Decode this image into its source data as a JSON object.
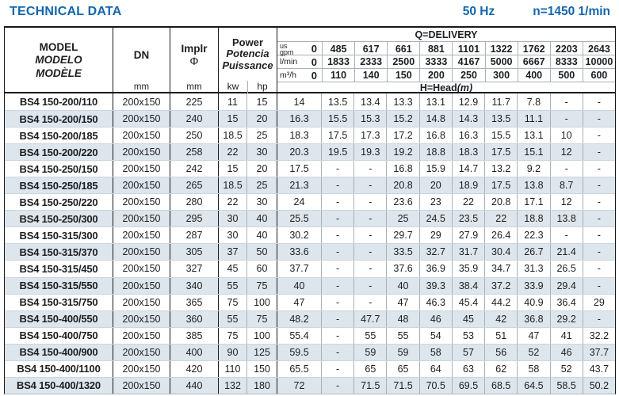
{
  "page": {
    "title": "TECHNICAL DATA",
    "frequency": "50 Hz",
    "speed": "n=1450 1/min"
  },
  "colors": {
    "accent_blue": "#1266ad",
    "row_stripe": "#dde6ed"
  },
  "table": {
    "header": {
      "model": {
        "lines": [
          "MODEL",
          "MODELO",
          "MODÈLE"
        ]
      },
      "dn": {
        "label": "DN",
        "unit": "mm"
      },
      "impeller": {
        "label": "Implr",
        "symbol": "Φ",
        "unit": "mm"
      },
      "power": {
        "lines": [
          "Power",
          "Potencia",
          "Puissance"
        ],
        "units": [
          "kw",
          "hp"
        ]
      },
      "delivery": {
        "title": "Q=DELIVERY",
        "unit_rows": [
          {
            "label_top": "us",
            "label": "gpm",
            "values": [
              "0",
              "485",
              "617",
              "661",
              "881",
              "1101",
              "1322",
              "1762",
              "2203",
              "2643"
            ]
          },
          {
            "label": "l/min",
            "values": [
              "0",
              "1833",
              "2333",
              "2500",
              "3333",
              "4167",
              "5000",
              "6667",
              "8333",
              "10000"
            ]
          },
          {
            "label": "m³/h",
            "values": [
              "0",
              "110",
              "140",
              "150",
              "200",
              "250",
              "300",
              "400",
              "500",
              "600"
            ]
          }
        ],
        "head_label": "H=Head",
        "head_unit": "(m)"
      }
    },
    "rows": [
      {
        "model": "BS4 150-200/110",
        "dn": "200x150",
        "impeller": "225",
        "kw": "11",
        "hp": "15",
        "head": [
          "14",
          "13.5",
          "13.4",
          "13.3",
          "13.1",
          "12.9",
          "11.7",
          "7.8",
          "-",
          "-"
        ]
      },
      {
        "model": "BS4 150-200/150",
        "dn": "200x150",
        "impeller": "240",
        "kw": "15",
        "hp": "20",
        "head": [
          "16.3",
          "15.5",
          "15.3",
          "15.2",
          "14.8",
          "14.3",
          "13.5",
          "11.1",
          "-",
          "-"
        ]
      },
      {
        "model": "BS4 150-200/185",
        "dn": "200x150",
        "impeller": "250",
        "kw": "18.5",
        "hp": "25",
        "head": [
          "18.3",
          "17.5",
          "17.3",
          "17.2",
          "16.8",
          "16.3",
          "15.5",
          "13.1",
          "10",
          "-"
        ]
      },
      {
        "model": "BS4 150-200/220",
        "dn": "200x150",
        "impeller": "258",
        "kw": "22",
        "hp": "30",
        "head": [
          "20.3",
          "19.5",
          "19.3",
          "19.2",
          "18.8",
          "18.3",
          "17.5",
          "15.1",
          "12",
          "-"
        ]
      },
      {
        "model": "BS4 150-250/150",
        "dn": "200x150",
        "impeller": "242",
        "kw": "15",
        "hp": "20",
        "head": [
          "17.5",
          "-",
          "-",
          "16.8",
          "15.9",
          "14.7",
          "13.2",
          "9.2",
          "-",
          "-"
        ]
      },
      {
        "model": "BS4 150-250/185",
        "dn": "200x150",
        "impeller": "265",
        "kw": "18.5",
        "hp": "25",
        "head": [
          "21.3",
          "-",
          "-",
          "20.8",
          "20",
          "18.9",
          "17.5",
          "13.8",
          "8.7",
          "-"
        ]
      },
      {
        "model": "BS4 150-250/220",
        "dn": "200x150",
        "impeller": "280",
        "kw": "22",
        "hp": "30",
        "head": [
          "24",
          "-",
          "-",
          "23.6",
          "23",
          "22",
          "20.8",
          "17.1",
          "12",
          "-"
        ]
      },
      {
        "model": "BS4 150-250/300",
        "dn": "200x150",
        "impeller": "295",
        "kw": "30",
        "hp": "40",
        "head": [
          "25.5",
          "-",
          "-",
          "25",
          "24.5",
          "23.5",
          "22",
          "18.8",
          "13.8",
          "-"
        ]
      },
      {
        "model": "BS4 150-315/300",
        "dn": "200x150",
        "impeller": "287",
        "kw": "30",
        "hp": "40",
        "head": [
          "30.2",
          "-",
          "-",
          "29.7",
          "29",
          "27.9",
          "26.4",
          "22.3",
          "-",
          "-"
        ]
      },
      {
        "model": "BS4 150-315/370",
        "dn": "200x150",
        "impeller": "305",
        "kw": "37",
        "hp": "50",
        "head": [
          "33.6",
          "-",
          "-",
          "33.5",
          "32.7",
          "31.7",
          "30.4",
          "26.7",
          "21.4",
          "-"
        ]
      },
      {
        "model": "BS4 150-315/450",
        "dn": "200x150",
        "impeller": "327",
        "kw": "45",
        "hp": "60",
        "head": [
          "37.7",
          "-",
          "-",
          "37.6",
          "36.9",
          "35.9",
          "34.7",
          "31.3",
          "26.5",
          "-"
        ]
      },
      {
        "model": "BS4 150-315/550",
        "dn": "200x150",
        "impeller": "340",
        "kw": "55",
        "hp": "75",
        "head": [
          "40",
          "-",
          "-",
          "40",
          "39.3",
          "38.4",
          "37.2",
          "33.9",
          "29.4",
          "-"
        ]
      },
      {
        "model": "BS4 150-315/750",
        "dn": "200x150",
        "impeller": "365",
        "kw": "75",
        "hp": "100",
        "head": [
          "47",
          "-",
          "-",
          "47",
          "46.3",
          "45.4",
          "44.2",
          "40.9",
          "36.4",
          "29"
        ]
      },
      {
        "model": "BS4 150-400/550",
        "dn": "200x150",
        "impeller": "360",
        "kw": "55",
        "hp": "75",
        "head": [
          "48.2",
          "-",
          "47.7",
          "48",
          "46",
          "45",
          "42",
          "36.8",
          "29.2",
          "-"
        ]
      },
      {
        "model": "BS4 150-400/750",
        "dn": "200x150",
        "impeller": "385",
        "kw": "75",
        "hp": "100",
        "head": [
          "55.4",
          "-",
          "55",
          "55",
          "54",
          "53",
          "51",
          "47",
          "41",
          "32.2"
        ]
      },
      {
        "model": "BS4 150-400/900",
        "dn": "200x150",
        "impeller": "400",
        "kw": "90",
        "hp": "125",
        "head": [
          "59.5",
          "-",
          "59",
          "59",
          "58",
          "57",
          "56",
          "52",
          "46",
          "37.7"
        ]
      },
      {
        "model": "BS4 150-400/1100",
        "dn": "200x150",
        "impeller": "420",
        "kw": "110",
        "hp": "150",
        "head": [
          "65.5",
          "-",
          "65",
          "65",
          "64",
          "63",
          "62",
          "58",
          "52",
          "43.7"
        ]
      },
      {
        "model": "BS4 150-400/1320",
        "dn": "200x150",
        "impeller": "440",
        "kw": "132",
        "hp": "180",
        "head": [
          "72",
          "-",
          "71.5",
          "71.5",
          "70.5",
          "69.5",
          "68.5",
          "64.5",
          "58.5",
          "50.2"
        ]
      }
    ]
  }
}
